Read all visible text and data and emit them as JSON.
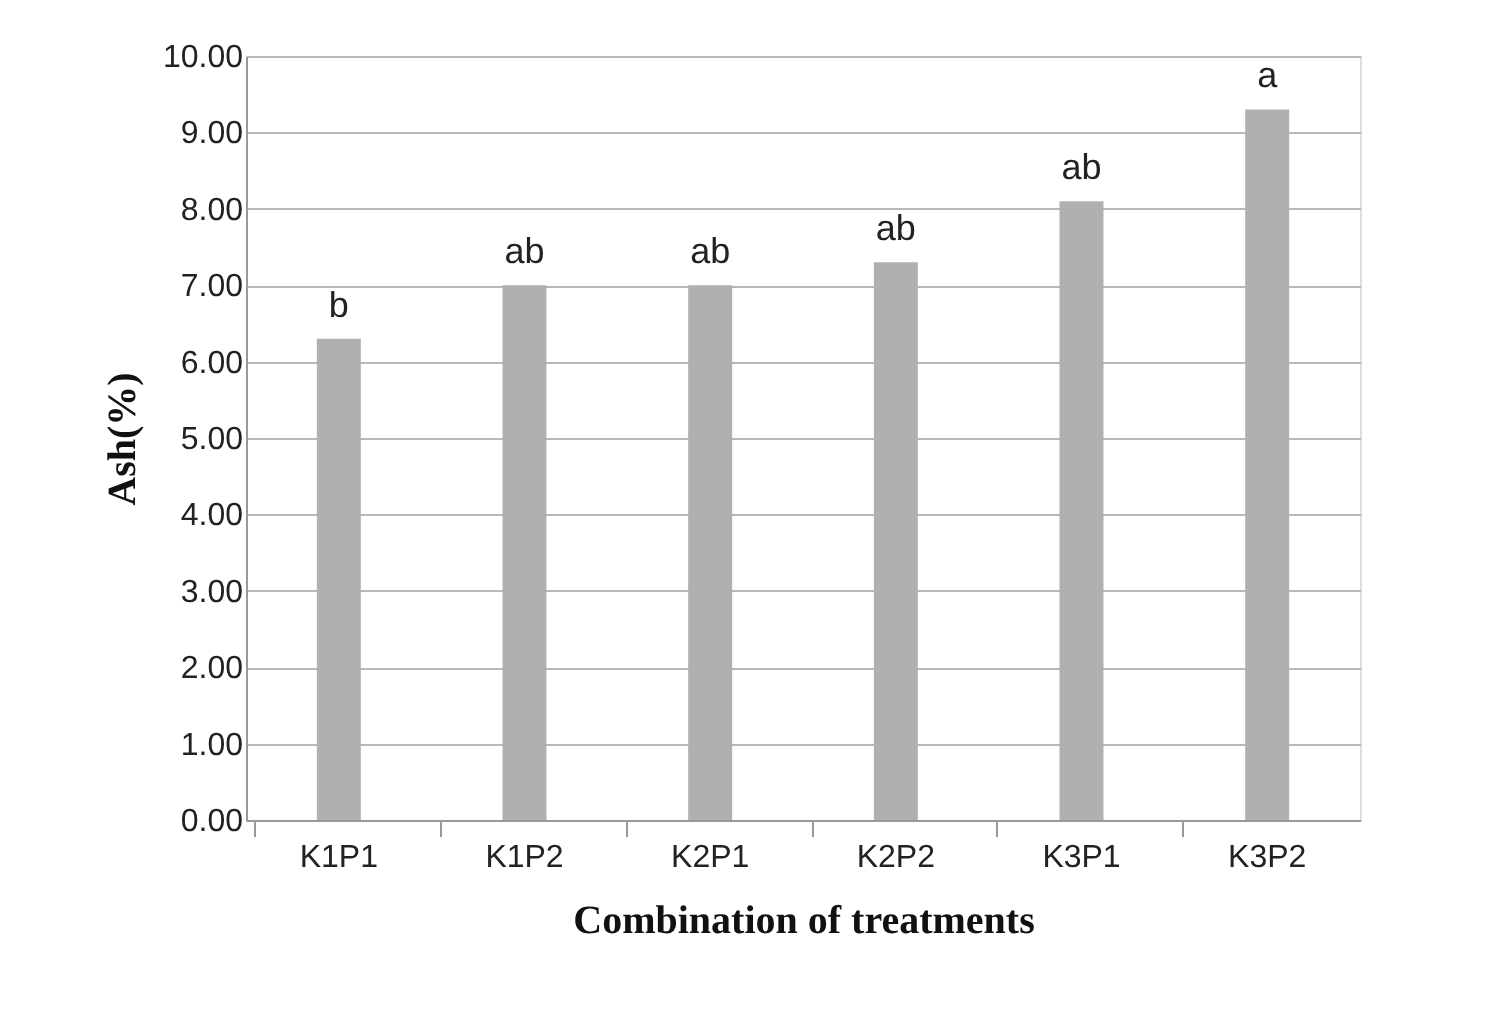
{
  "chart_data": {
    "type": "bar",
    "xlabel": "Combination  of treatments",
    "ylabel": "Ash(%)",
    "categories": [
      "K1P1",
      "K1P2",
      "K2P1",
      "K2P2",
      "K3P1",
      "K3P2"
    ],
    "values": [
      6.3,
      7.0,
      7.0,
      7.3,
      8.1,
      9.3
    ],
    "color": "#b0b0b0",
    "ylim": [
      0,
      10
    ],
    "yticks": [
      {
        "value": 0,
        "label": "0.00"
      },
      {
        "value": 1,
        "label": "1.00"
      },
      {
        "value": 2,
        "label": "2.00"
      },
      {
        "value": 3,
        "label": "3.00"
      },
      {
        "value": 4,
        "label": "4.00"
      },
      {
        "value": 5,
        "label": "5.00"
      },
      {
        "value": 6,
        "label": "6.00"
      },
      {
        "value": 7,
        "label": "7.00"
      },
      {
        "value": 8,
        "label": "8.00"
      },
      {
        "value": 9,
        "label": "9.00"
      },
      {
        "value": 10,
        "label": "10.00"
      }
    ],
    "grid": "y",
    "annotations": [
      {
        "text": "b",
        "x": "K1P1",
        "y": 6.3
      },
      {
        "text": "ab",
        "x": "K1P2",
        "y": 7.0
      },
      {
        "text": "ab",
        "x": "K2P1",
        "y": 7.0
      },
      {
        "text": "ab",
        "x": "K2P2",
        "y": 7.3
      },
      {
        "text": "ab",
        "x": "K3P1",
        "y": 8.1
      },
      {
        "text": "a",
        "x": "K3P2",
        "y": 9.3
      }
    ]
  }
}
